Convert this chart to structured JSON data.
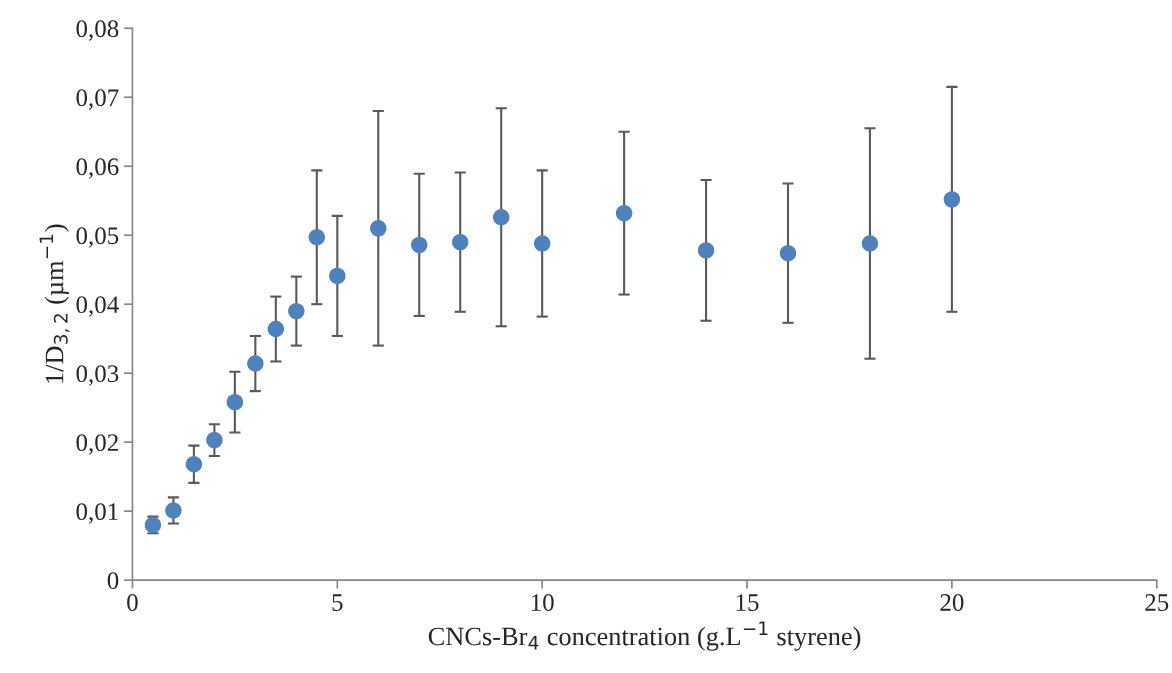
{
  "chart_data": {
    "type": "scatter",
    "xlabel": "CNCs-Br$_{4}$ concentration (g.L$^{−1}$ styrene)",
    "ylabel": "1/D$_{3,2}$ (µm$^{−1}$)",
    "x": [
      0.5,
      1,
      1.5,
      2,
      2.5,
      3,
      3.5,
      4,
      4.5,
      5,
      6,
      7,
      8,
      9,
      10,
      12,
      14,
      16,
      18,
      20
    ],
    "series": [
      {
        "color": "#4f81bd",
        "values": [
          0.008,
          0.0101,
          0.0168,
          0.0203,
          0.0258,
          0.0314,
          0.0364,
          0.039,
          0.0497,
          0.0441,
          0.051,
          0.0486,
          0.049,
          0.0526,
          0.0488,
          0.0532,
          0.0478,
          0.0474,
          0.0488,
          0.0552
        ],
        "errors": [
          0.0012,
          0.0019,
          0.0027,
          0.0023,
          0.0044,
          0.004,
          0.0047,
          0.005,
          0.0097,
          0.0087,
          0.017,
          0.0103,
          0.0101,
          0.0158,
          0.0106,
          0.0118,
          0.0102,
          0.0101,
          0.0167,
          0.0163
        ]
      }
    ],
    "marker": "circle",
    "xlim": [
      0,
      25
    ],
    "xticks": [
      0,
      5,
      10,
      15,
      20,
      25
    ],
    "ylim": [
      0,
      0.08
    ],
    "yticks": [
      {
        "value": 0,
        "label": "0"
      },
      {
        "value": 0.01,
        "label": "0,01"
      },
      {
        "value": 0.02,
        "label": "0,02"
      },
      {
        "value": 0.03,
        "label": "0,03"
      },
      {
        "value": 0.04,
        "label": "0,04"
      },
      {
        "value": 0.05,
        "label": "0,05"
      },
      {
        "value": 0.06,
        "label": "0,06"
      },
      {
        "value": 0.07,
        "label": "0,07"
      },
      {
        "value": 0.08,
        "label": "0,08"
      }
    ],
    "grid": false,
    "legend": false
  }
}
